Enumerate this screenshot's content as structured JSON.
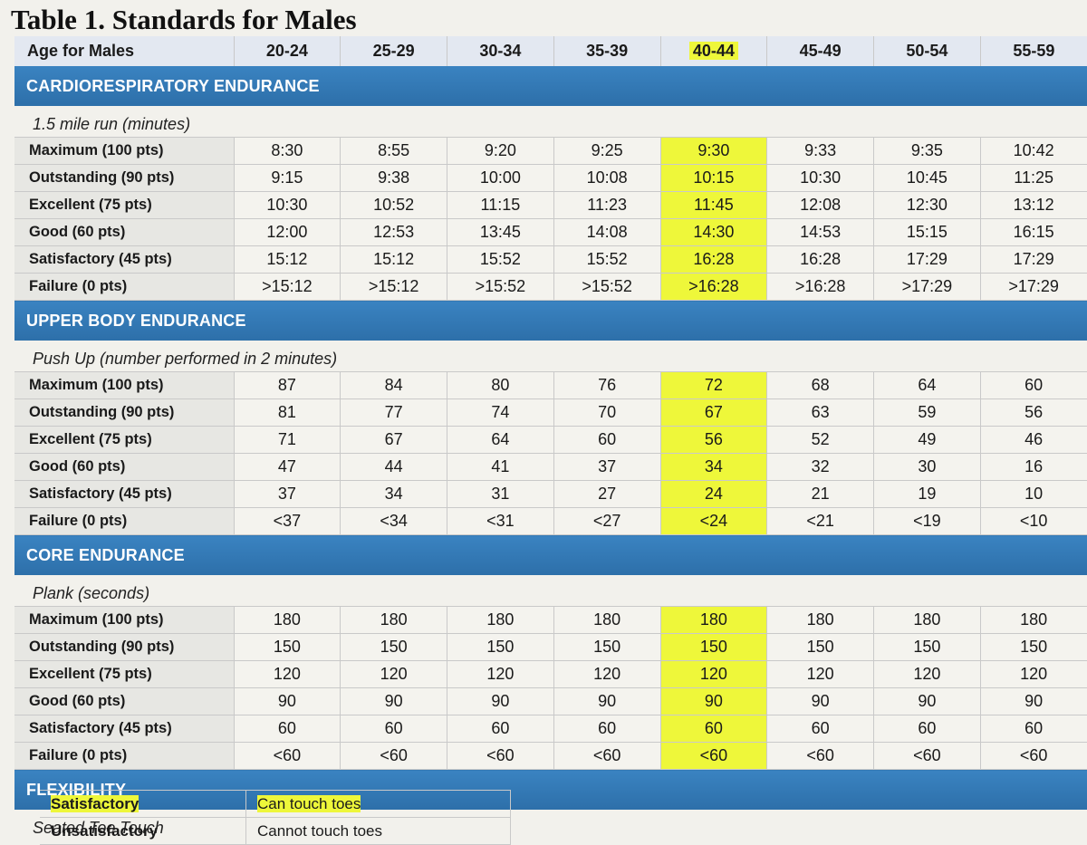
{
  "title": "Table 1. Standards for Males",
  "header": {
    "label": "Age for Males",
    "ages": [
      "20-24",
      "25-29",
      "30-34",
      "35-39",
      "40-44",
      "45-49",
      "50-54",
      "55-59"
    ],
    "highlighted_age": "40-44"
  },
  "highlight_color": "#eef73a",
  "band_color": "#3a83c1",
  "sections": {
    "cardio": {
      "title": "CARDIORESPIRATORY ENDURANCE",
      "subtitle": "1.5 mile run (minutes)",
      "rows": [
        {
          "label": "Maximum (100 pts)",
          "values": [
            "8:30",
            "8:55",
            "9:20",
            "9:25",
            "9:30",
            "9:33",
            "9:35",
            "10:42"
          ]
        },
        {
          "label": "Outstanding (90 pts)",
          "values": [
            "9:15",
            "9:38",
            "10:00",
            "10:08",
            "10:15",
            "10:30",
            "10:45",
            "11:25"
          ]
        },
        {
          "label": "Excellent (75 pts)",
          "values": [
            "10:30",
            "10:52",
            "11:15",
            "11:23",
            "11:45",
            "12:08",
            "12:30",
            "13:12"
          ]
        },
        {
          "label": "Good (60 pts)",
          "values": [
            "12:00",
            "12:53",
            "13:45",
            "14:08",
            "14:30",
            "14:53",
            "15:15",
            "16:15"
          ]
        },
        {
          "label": "Satisfactory (45 pts)",
          "values": [
            "15:12",
            "15:12",
            "15:52",
            "15:52",
            "16:28",
            "16:28",
            "17:29",
            "17:29"
          ]
        },
        {
          "label": "Failure (0 pts)",
          "values": [
            ">15:12",
            ">15:12",
            ">15:52",
            ">15:52",
            ">16:28",
            ">16:28",
            ">17:29",
            ">17:29"
          ]
        }
      ]
    },
    "upper": {
      "title": "UPPER BODY ENDURANCE",
      "subtitle": "Push Up (number performed in 2 minutes)",
      "rows": [
        {
          "label": "Maximum (100 pts)",
          "values": [
            "87",
            "84",
            "80",
            "76",
            "72",
            "68",
            "64",
            "60"
          ]
        },
        {
          "label": "Outstanding (90 pts)",
          "values": [
            "81",
            "77",
            "74",
            "70",
            "67",
            "63",
            "59",
            "56"
          ]
        },
        {
          "label": "Excellent (75 pts)",
          "values": [
            "71",
            "67",
            "64",
            "60",
            "56",
            "52",
            "49",
            "46"
          ]
        },
        {
          "label": "Good (60 pts)",
          "values": [
            "47",
            "44",
            "41",
            "37",
            "34",
            "32",
            "30",
            "16"
          ]
        },
        {
          "label": "Satisfactory (45 pts)",
          "values": [
            "37",
            "34",
            "31",
            "27",
            "24",
            "21",
            "19",
            "10"
          ]
        },
        {
          "label": "Failure (0 pts)",
          "values": [
            "<37",
            "<34",
            "<31",
            "<27",
            "<24",
            "<21",
            "<19",
            "<10"
          ]
        }
      ]
    },
    "core": {
      "title": "CORE ENDURANCE",
      "subtitle": "Plank (seconds)",
      "rows": [
        {
          "label": "Maximum (100 pts)",
          "values": [
            "180",
            "180",
            "180",
            "180",
            "180",
            "180",
            "180",
            "180"
          ]
        },
        {
          "label": "Outstanding (90 pts)",
          "values": [
            "150",
            "150",
            "150",
            "150",
            "150",
            "150",
            "150",
            "150"
          ]
        },
        {
          "label": "Excellent (75 pts)",
          "values": [
            "120",
            "120",
            "120",
            "120",
            "120",
            "120",
            "120",
            "120"
          ]
        },
        {
          "label": "Good (60 pts)",
          "values": [
            "90",
            "90",
            "90",
            "90",
            "90",
            "90",
            "90",
            "90"
          ]
        },
        {
          "label": "Satisfactory (45 pts)",
          "values": [
            "60",
            "60",
            "60",
            "60",
            "60",
            "60",
            "60",
            "60"
          ]
        },
        {
          "label": "Failure (0 pts)",
          "values": [
            "<60",
            "<60",
            "<60",
            "<60",
            "<60",
            "<60",
            "<60",
            "<60"
          ]
        }
      ]
    },
    "flexibility": {
      "title": "FLEXIBILITY",
      "subtitle": "Seated Toe Touch",
      "rows": [
        {
          "label": "Satisfactory",
          "value": "Can touch toes",
          "highlighted": true
        },
        {
          "label": "Unsatisfactory",
          "value": "Cannot touch toes",
          "highlighted": false
        }
      ]
    }
  }
}
